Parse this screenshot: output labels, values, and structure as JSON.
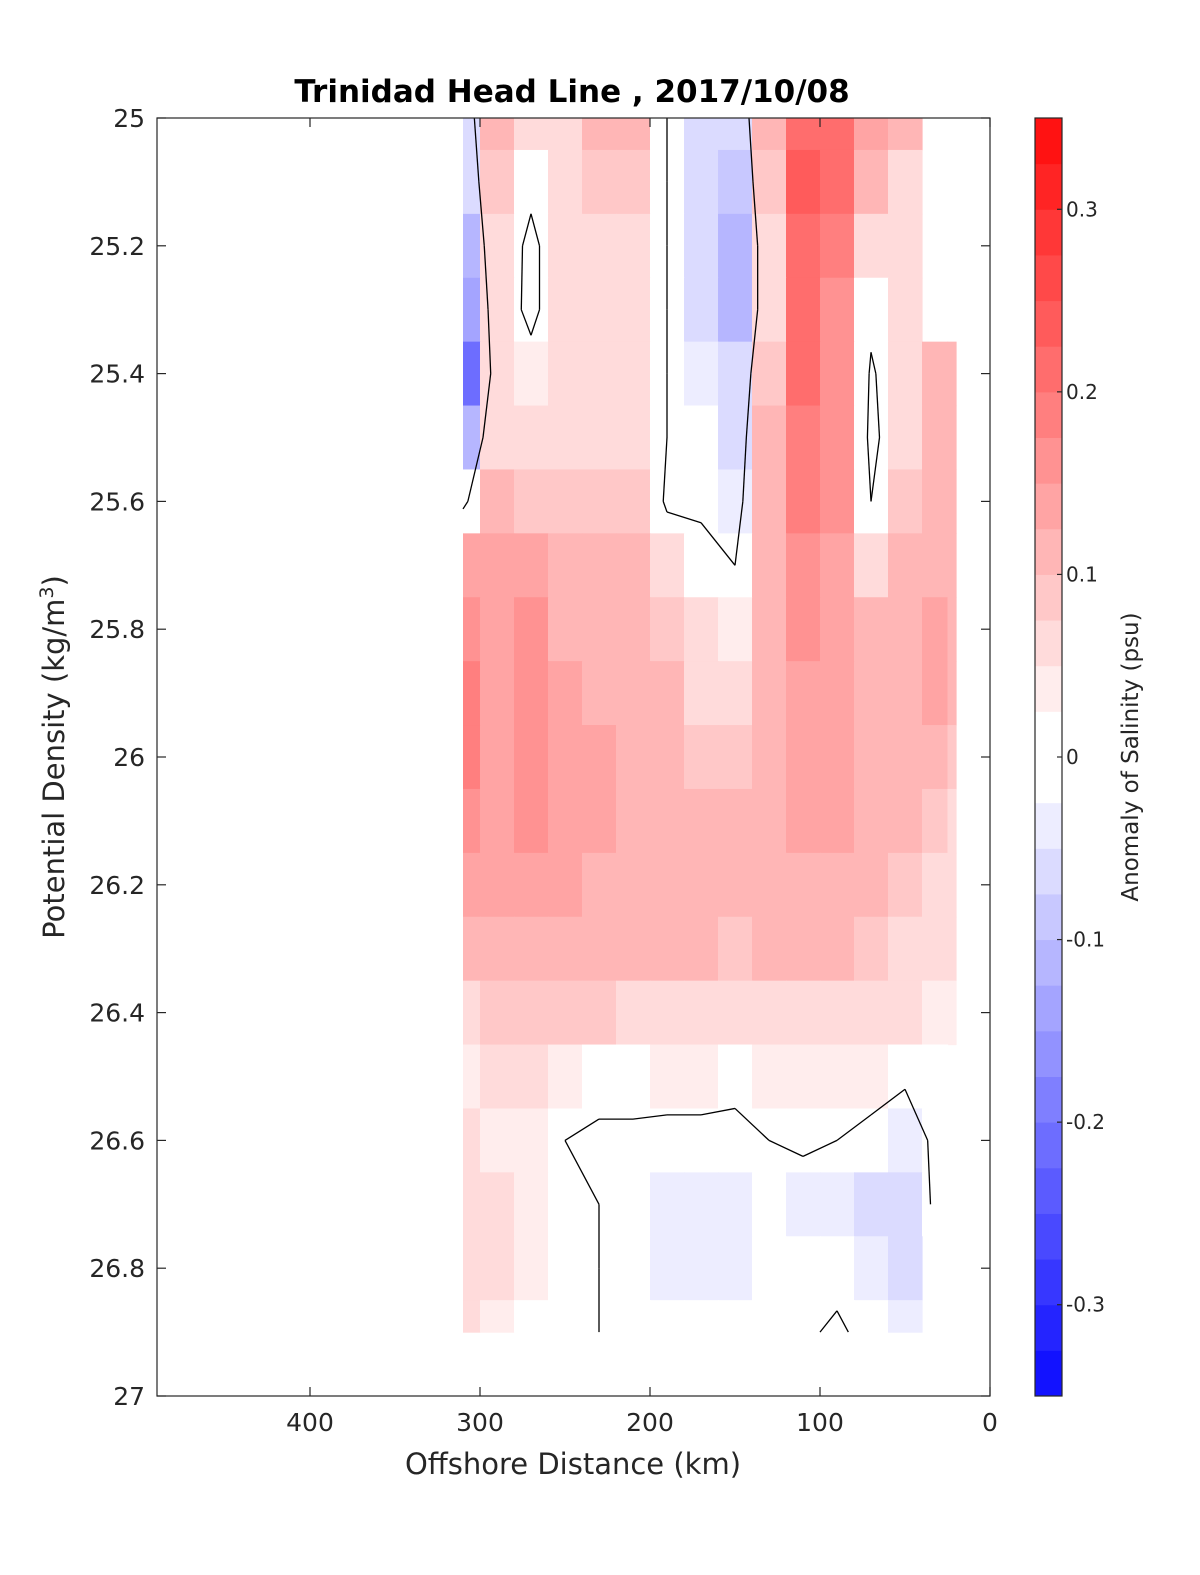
{
  "chart_data": {
    "type": "heatmap",
    "title": "Trinidad Head Line , 2017/10/08",
    "xlabel": "Offshore Distance (km)",
    "ylabel_text": "Potential Density (kg/m",
    "ylabel_sup": "3",
    "ylabel_close": ")",
    "colorbar_label": "Anomaly of Salinity (psu)",
    "xlim": [
      490,
      0
    ],
    "ylim": [
      25,
      27
    ],
    "x_reversed": true,
    "y_reversed": true,
    "x_ticks": [
      400,
      300,
      200,
      100,
      0
    ],
    "y_ticks": [
      25,
      25.2,
      25.4,
      25.6,
      25.8,
      26,
      26.2,
      26.4,
      26.6,
      26.8,
      27
    ],
    "x_tick_labels": [
      "400",
      "300",
      "200",
      "100",
      "0"
    ],
    "y_tick_labels": [
      "25",
      "25.2",
      "25.4",
      "25.6",
      "25.8",
      "26",
      "26.2",
      "26.4",
      "26.6",
      "26.8",
      "27"
    ],
    "colorbar_range": [
      -0.35,
      0.35
    ],
    "colorbar_step": 0.025,
    "colorbar_ticks": [
      -0.3,
      -0.2,
      -0.1,
      0,
      0.1,
      0.2,
      0.3
    ],
    "colorbar_tick_labels": [
      "-0.3",
      "-0.2",
      "-0.1",
      "0",
      "0.1",
      "0.2",
      "0.3"
    ],
    "colormap": {
      "negative": "#0000ff",
      "zero": "#ffffff",
      "positive": "#ff0000"
    },
    "contour_levels": [
      0
    ],
    "grid": false,
    "distances_km": [
      310,
      290,
      270,
      250,
      230,
      210,
      190,
      170,
      150,
      130,
      110,
      90,
      70,
      50,
      30,
      20
    ],
    "densities": [
      25.0,
      25.1,
      25.2,
      25.3,
      25.4,
      25.5,
      25.6,
      25.7,
      25.8,
      25.9,
      26.0,
      26.1,
      26.2,
      26.3,
      26.4,
      26.5,
      26.6,
      26.7,
      26.8,
      26.9
    ],
    "anomaly_psu": [
      [
        -0.05,
        0.1,
        0.05,
        0.07,
        0.1,
        0.1,
        0.0,
        -0.05,
        -0.07,
        0.1,
        0.22,
        0.2,
        0.15,
        0.1,
        null,
        null
      ],
      [
        -0.07,
        0.08,
        0.02,
        0.07,
        0.09,
        0.08,
        0.0,
        -0.06,
        -0.09,
        0.08,
        0.23,
        0.2,
        0.1,
        0.06,
        null,
        null
      ],
      [
        -0.1,
        0.06,
        -0.02,
        0.06,
        0.07,
        0.07,
        0.0,
        -0.07,
        -0.12,
        0.06,
        0.22,
        0.18,
        0.05,
        0.05,
        null,
        null
      ],
      [
        -0.14,
        0.05,
        -0.02,
        0.06,
        0.07,
        0.07,
        0.0,
        -0.06,
        -0.1,
        0.05,
        0.2,
        0.17,
        0.02,
        0.06,
        null,
        null
      ],
      [
        -0.22,
        0.05,
        0.03,
        0.07,
        0.07,
        0.06,
        0.0,
        -0.04,
        -0.07,
        0.08,
        0.2,
        0.17,
        -0.01,
        0.06,
        0.1,
        0.1
      ],
      [
        -0.1,
        0.07,
        0.05,
        0.07,
        0.07,
        0.06,
        0.0,
        -0.02,
        -0.05,
        0.1,
        0.19,
        0.17,
        -0.02,
        0.06,
        0.1,
        0.1
      ],
      [
        -0.02,
        0.12,
        0.09,
        0.08,
        0.08,
        0.08,
        -0.01,
        -0.01,
        -0.03,
        0.1,
        0.18,
        0.16,
        0.0,
        0.08,
        0.1,
        0.1
      ],
      [
        0.15,
        0.15,
        0.13,
        0.1,
        0.1,
        0.1,
        0.05,
        0.02,
        0.0,
        0.1,
        0.17,
        0.15,
        0.06,
        0.1,
        0.1,
        0.1
      ],
      [
        0.17,
        0.15,
        0.16,
        0.12,
        0.11,
        0.11,
        0.08,
        0.05,
        0.04,
        0.1,
        0.16,
        0.14,
        0.1,
        0.11,
        0.13,
        0.1
      ],
      [
        0.18,
        0.15,
        0.17,
        0.14,
        0.12,
        0.12,
        0.1,
        0.07,
        0.06,
        0.1,
        0.15,
        0.14,
        0.11,
        0.11,
        0.13,
        0.1
      ],
      [
        0.18,
        0.15,
        0.17,
        0.14,
        0.13,
        0.12,
        0.11,
        0.09,
        0.09,
        0.11,
        0.14,
        0.14,
        0.12,
        0.11,
        0.1,
        0.08
      ],
      [
        0.17,
        0.15,
        0.16,
        0.14,
        0.13,
        0.12,
        0.11,
        0.1,
        0.1,
        0.12,
        0.13,
        0.13,
        0.11,
        0.1,
        0.08,
        0.07
      ],
      [
        0.14,
        0.13,
        0.15,
        0.13,
        0.12,
        0.12,
        0.11,
        0.1,
        0.1,
        0.11,
        0.12,
        0.12,
        0.1,
        0.09,
        0.07,
        0.06
      ],
      [
        0.11,
        0.11,
        0.12,
        0.11,
        0.11,
        0.11,
        0.1,
        0.1,
        0.09,
        0.1,
        0.1,
        0.1,
        0.08,
        0.07,
        0.06,
        0.05
      ],
      [
        0.07,
        0.08,
        0.09,
        0.08,
        0.08,
        0.07,
        0.07,
        0.07,
        0.06,
        0.07,
        0.07,
        0.06,
        0.05,
        0.05,
        0.04,
        0.04
      ],
      [
        0.04,
        0.05,
        0.05,
        0.03,
        0.02,
        0.02,
        0.03,
        0.03,
        0.02,
        0.04,
        0.04,
        0.03,
        0.03,
        0.01,
        0.02,
        null
      ],
      [
        0.05,
        0.04,
        0.03,
        0.0,
        -0.01,
        -0.01,
        -0.02,
        -0.02,
        -0.02,
        0.0,
        0.01,
        0.0,
        -0.02,
        -0.04,
        0.02,
        null
      ],
      [
        0.06,
        0.05,
        0.04,
        0.02,
        0.0,
        -0.02,
        -0.04,
        -0.04,
        -0.03,
        -0.01,
        -0.03,
        -0.03,
        -0.05,
        -0.06,
        0.02,
        null
      ],
      [
        0.05,
        0.05,
        0.03,
        0.01,
        0.0,
        -0.02,
        -0.03,
        -0.04,
        -0.03,
        -0.01,
        -0.02,
        -0.02,
        -0.04,
        -0.05,
        null,
        null
      ],
      [
        0.06,
        0.04,
        0.02,
        0.01,
        0.0,
        -0.01,
        -0.02,
        -0.02,
        -0.01,
        0.0,
        -0.01,
        0.01,
        -0.02,
        -0.03,
        null,
        null
      ]
    ]
  }
}
